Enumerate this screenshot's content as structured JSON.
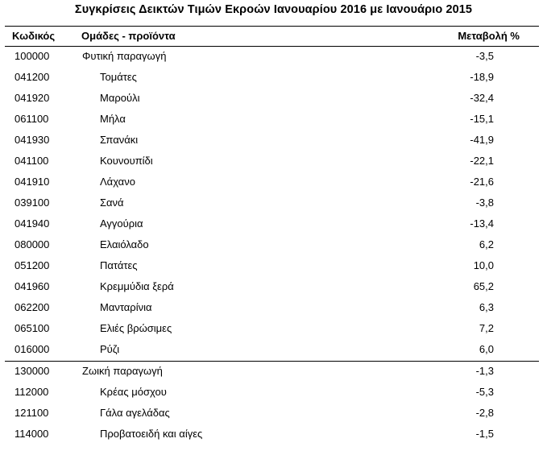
{
  "title": "Συγκρίσεις Δεικτών Τιμών Εκροών Ιανουαρίου 2016 με Ιανουάριο 2015",
  "headers": {
    "code": "Κωδικός",
    "group": "Ομάδες - προϊόντα",
    "change": "Μεταβολή %"
  },
  "sections": [
    {
      "rows": [
        {
          "code": "100000",
          "name": "Φυτική παραγωγή",
          "value": "-3,5",
          "level": "group"
        },
        {
          "code": "041200",
          "name": "Τομάτες",
          "value": "-18,9",
          "level": "sub"
        },
        {
          "code": "041920",
          "name": "Μαρούλι",
          "value": "-32,4",
          "level": "sub"
        },
        {
          "code": "061100",
          "name": "Μήλα",
          "value": "-15,1",
          "level": "sub"
        },
        {
          "code": "041930",
          "name": "Σπανάκι",
          "value": "-41,9",
          "level": "sub"
        },
        {
          "code": "041100",
          "name": "Κουνουπίδι",
          "value": "-22,1",
          "level": "sub"
        },
        {
          "code": "041910",
          "name": "Λάχανο",
          "value": "-21,6",
          "level": "sub"
        },
        {
          "code": "039100",
          "name": "Σανά",
          "value": "-3,8",
          "level": "sub"
        },
        {
          "code": "041940",
          "name": "Αγγούρια",
          "value": "-13,4",
          "level": "sub"
        },
        {
          "code": "080000",
          "name": "Ελαιόλαδο",
          "value": "6,2",
          "level": "sub"
        },
        {
          "code": "051200",
          "name": "Πατάτες",
          "value": "10,0",
          "level": "sub"
        },
        {
          "code": "041960",
          "name": "Κρεμμύδια ξερά",
          "value": "65,2",
          "level": "sub"
        },
        {
          "code": "062200",
          "name": "Μανταρίνια",
          "value": "6,3",
          "level": "sub"
        },
        {
          "code": "065100",
          "name": "Ελιές βρώσιμες",
          "value": "7,2",
          "level": "sub"
        },
        {
          "code": "016000",
          "name": "Ρύζι",
          "value": "6,0",
          "level": "sub"
        }
      ]
    },
    {
      "rows": [
        {
          "code": "130000",
          "name": "Ζωική παραγωγή",
          "value": "-1,3",
          "level": "group"
        },
        {
          "code": "112000",
          "name": "Κρέας μόσχου",
          "value": "-5,3",
          "level": "sub"
        },
        {
          "code": "121100",
          "name": "Γάλα αγελάδας",
          "value": "-2,8",
          "level": "sub"
        },
        {
          "code": "114000",
          "name": "Προβατοειδή και αίγες",
          "value": "-1,5",
          "level": "sub"
        }
      ]
    }
  ]
}
